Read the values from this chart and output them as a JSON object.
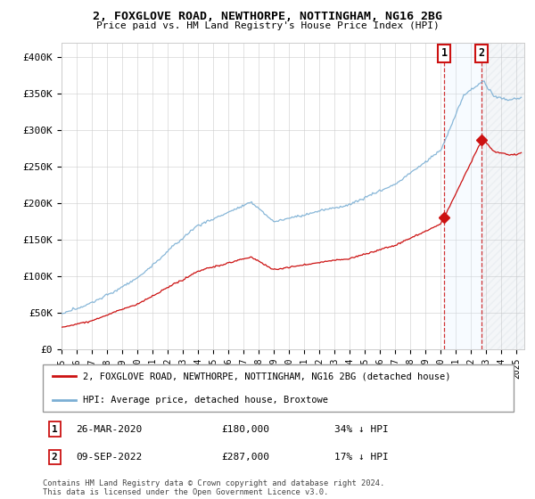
{
  "title": "2, FOXGLOVE ROAD, NEWTHORPE, NOTTINGHAM, NG16 2BG",
  "subtitle": "Price paid vs. HM Land Registry's House Price Index (HPI)",
  "ylim": [
    0,
    420000
  ],
  "yticks": [
    0,
    50000,
    100000,
    150000,
    200000,
    250000,
    300000,
    350000,
    400000
  ],
  "ytick_labels": [
    "£0",
    "£50K",
    "£100K",
    "£150K",
    "£200K",
    "£250K",
    "£300K",
    "£350K",
    "£400K"
  ],
  "hpi_color": "#7bafd4",
  "price_color": "#cc1111",
  "marker_color": "#cc1111",
  "vline_color": "#cc1111",
  "shade_color": "#ddeeff",
  "grid_color": "#cccccc",
  "transaction1": {
    "date_label": "26-MAR-2020",
    "price": 180000,
    "pct": "34% ↓ HPI",
    "x_year": 2020.23
  },
  "transaction2": {
    "date_label": "09-SEP-2022",
    "price": 287000,
    "pct": "17% ↓ HPI",
    "x_year": 2022.69
  },
  "legend_line1": "2, FOXGLOVE ROAD, NEWTHORPE, NOTTINGHAM, NG16 2BG (detached house)",
  "legend_line2": "HPI: Average price, detached house, Broxtowe",
  "footer": "Contains HM Land Registry data © Crown copyright and database right 2024.\nThis data is licensed under the Open Government Licence v3.0.",
  "annotation1_label": "1",
  "annotation2_label": "2",
  "background_color": "#ffffff",
  "xmin": 1995,
  "xmax": 2025.5
}
